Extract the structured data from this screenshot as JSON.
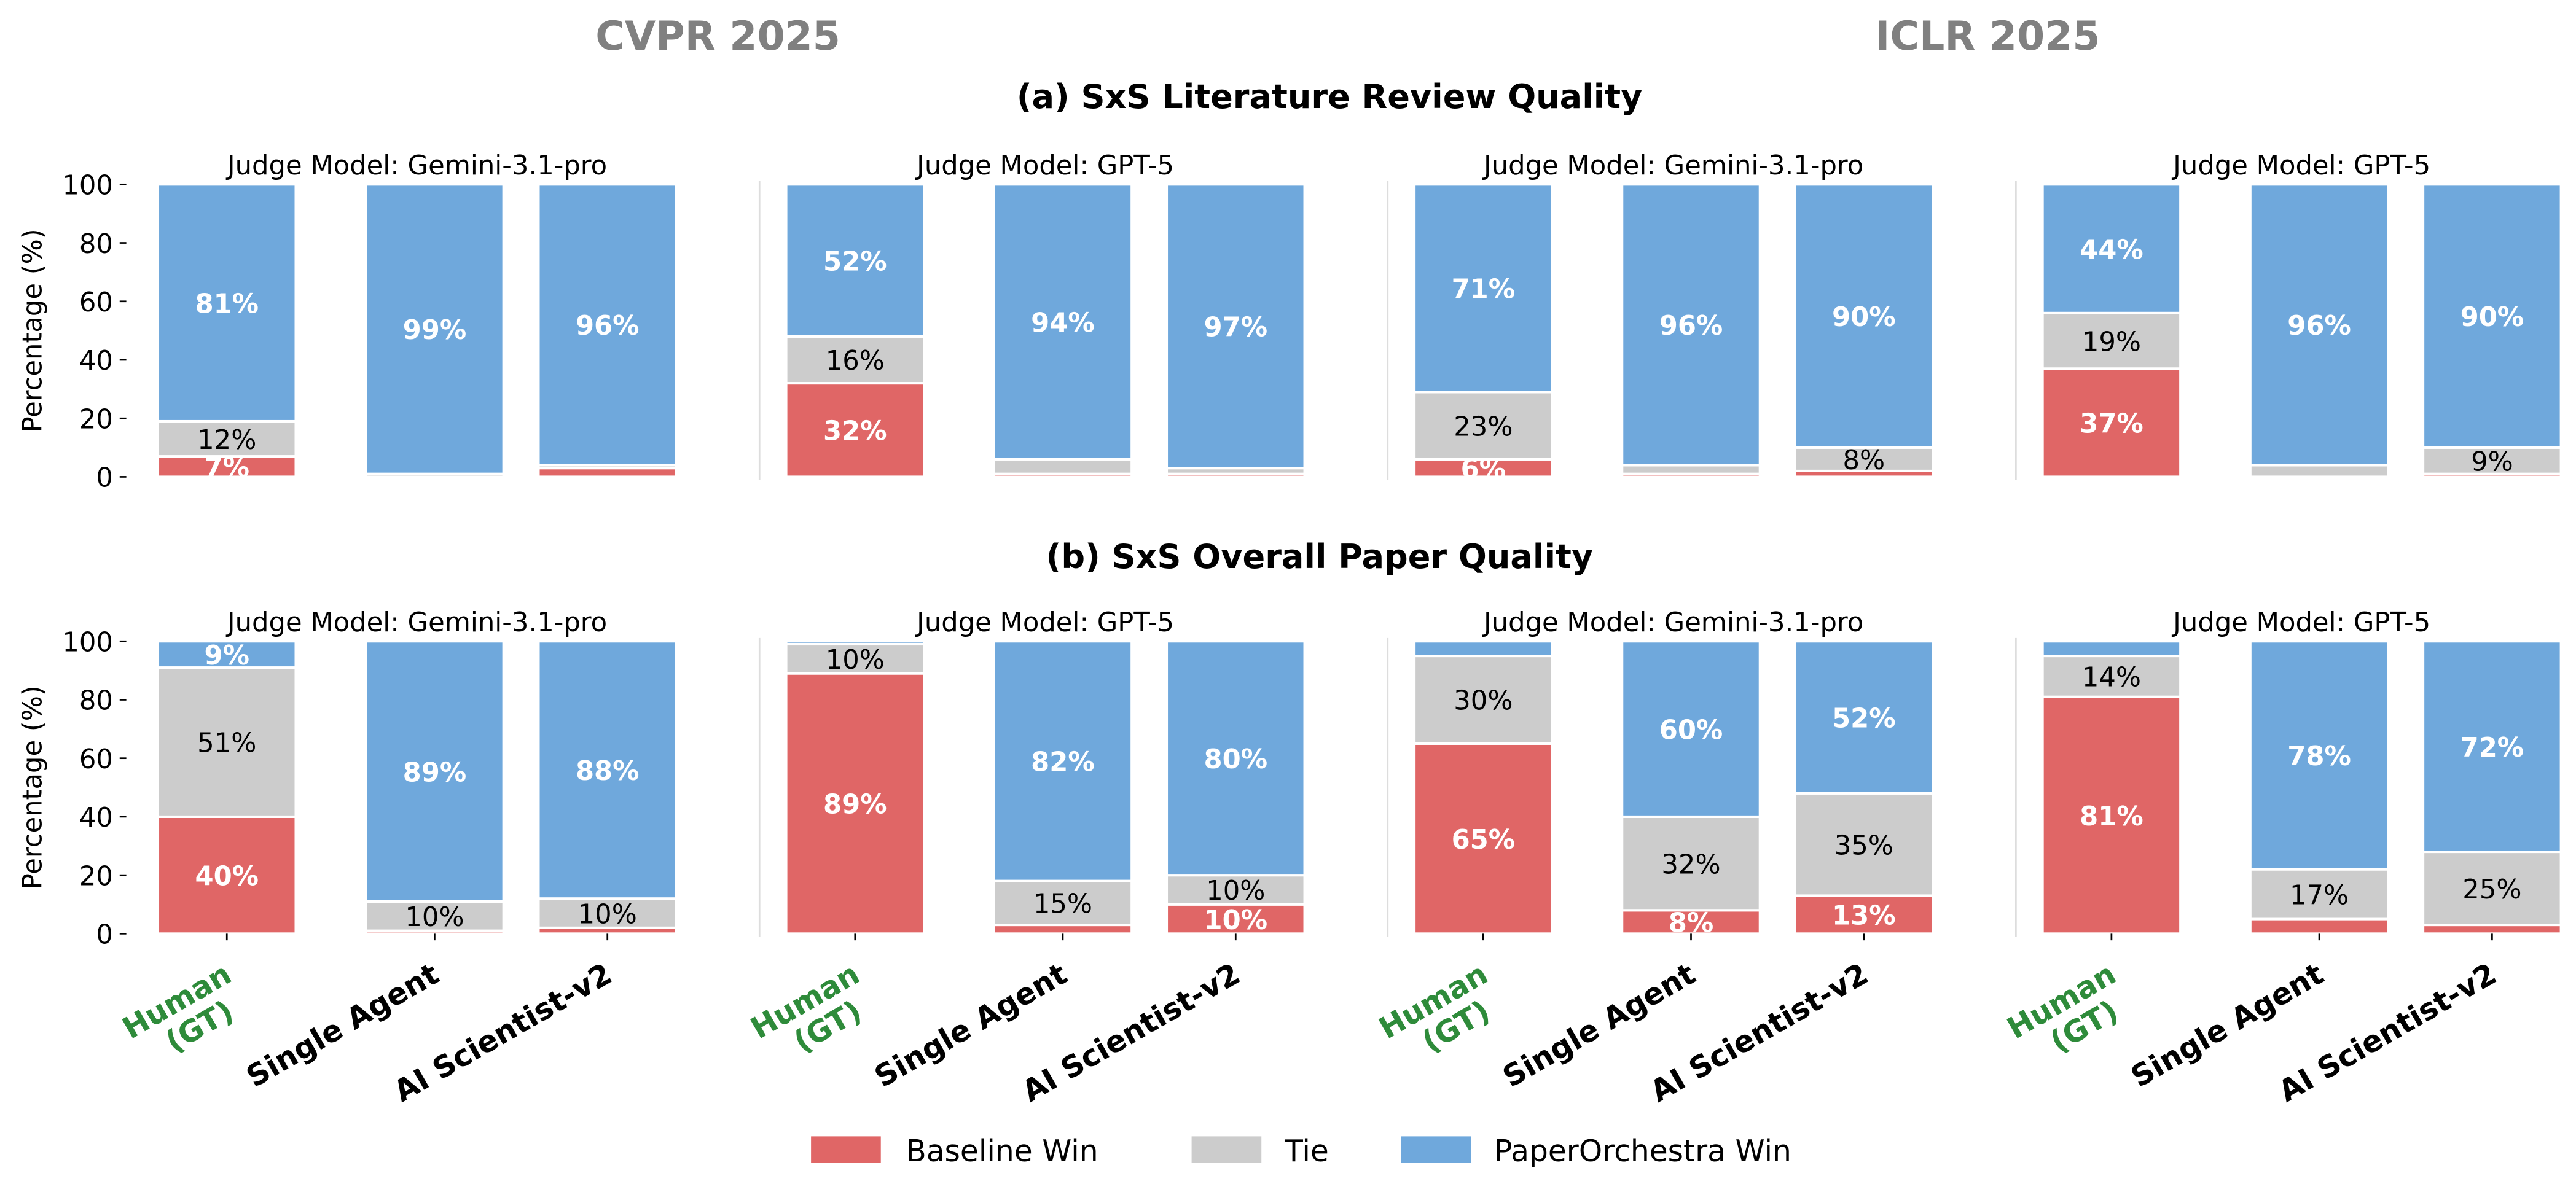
{
  "column_headers": [
    "CVPR 2025",
    "ICLR 2025"
  ],
  "colors": {
    "baseline": "#E06666",
    "tie": "#CCCCCC",
    "win": "#6FA8DC",
    "header": "#808080",
    "human_label": "#2E8B3A"
  },
  "legend": [
    "Baseline Win",
    "Tie",
    "PaperOrchestra Win"
  ],
  "chart_data": {
    "type": "bar",
    "stacked": true,
    "ylabel": "Percentage (%)",
    "ylim": [
      0,
      100
    ],
    "yticks": [
      "0",
      "20",
      "40",
      "60",
      "80",
      "100"
    ],
    "categories": [
      "Human\n(GT)",
      "Single Agent",
      "AI Scientist-v2"
    ],
    "legend_position": "bottom-center",
    "rows": [
      {
        "title": "(a) SxS Literature Review Quality",
        "panels": [
          {
            "conference": "CVPR 2025",
            "subtitle": "Judge Model: Gemini-3.1-pro",
            "series": [
              {
                "name": "Baseline Win",
                "values": [
                  7,
                  0,
                  3
                ]
              },
              {
                "name": "Tie",
                "values": [
                  12,
                  1,
                  1
                ]
              },
              {
                "name": "PaperOrchestra Win",
                "values": [
                  81,
                  99,
                  96
                ]
              }
            ]
          },
          {
            "conference": "CVPR 2025",
            "subtitle": "Judge Model: GPT-5",
            "series": [
              {
                "name": "Baseline Win",
                "values": [
                  32,
                  1,
                  1
                ]
              },
              {
                "name": "Tie",
                "values": [
                  16,
                  5,
                  2
                ]
              },
              {
                "name": "PaperOrchestra Win",
                "values": [
                  52,
                  94,
                  97
                ]
              }
            ]
          },
          {
            "conference": "ICLR 2025",
            "subtitle": "Judge Model: Gemini-3.1-pro",
            "series": [
              {
                "name": "Baseline Win",
                "values": [
                  6,
                  1,
                  2
                ]
              },
              {
                "name": "Tie",
                "values": [
                  23,
                  3,
                  8
                ]
              },
              {
                "name": "PaperOrchestra Win",
                "values": [
                  71,
                  96,
                  90
                ]
              }
            ]
          },
          {
            "conference": "ICLR 2025",
            "subtitle": "Judge Model: GPT-5",
            "series": [
              {
                "name": "Baseline Win",
                "values": [
                  37,
                  0,
                  1
                ]
              },
              {
                "name": "Tie",
                "values": [
                  19,
                  4,
                  9
                ]
              },
              {
                "name": "PaperOrchestra Win",
                "values": [
                  44,
                  96,
                  90
                ]
              }
            ]
          }
        ]
      },
      {
        "title": "(b) SxS Overall Paper Quality",
        "panels": [
          {
            "conference": "CVPR 2025",
            "subtitle": "Judge Model: Gemini-3.1-pro",
            "series": [
              {
                "name": "Baseline Win",
                "values": [
                  40,
                  1,
                  2
                ]
              },
              {
                "name": "Tie",
                "values": [
                  51,
                  10,
                  10
                ]
              },
              {
                "name": "PaperOrchestra Win",
                "values": [
                  9,
                  89,
                  88
                ]
              }
            ]
          },
          {
            "conference": "CVPR 2025",
            "subtitle": "Judge Model: GPT-5",
            "series": [
              {
                "name": "Baseline Win",
                "values": [
                  89,
                  3,
                  10
                ]
              },
              {
                "name": "Tie",
                "values": [
                  10,
                  15,
                  10
                ]
              },
              {
                "name": "PaperOrchestra Win",
                "values": [
                  1,
                  82,
                  80
                ]
              }
            ]
          },
          {
            "conference": "ICLR 2025",
            "subtitle": "Judge Model: Gemini-3.1-pro",
            "series": [
              {
                "name": "Baseline Win",
                "values": [
                  65,
                  8,
                  13
                ]
              },
              {
                "name": "Tie",
                "values": [
                  30,
                  32,
                  35
                ]
              },
              {
                "name": "PaperOrchestra Win",
                "values": [
                  5,
                  60,
                  52
                ]
              }
            ]
          },
          {
            "conference": "ICLR 2025",
            "subtitle": "Judge Model: GPT-5",
            "series": [
              {
                "name": "Baseline Win",
                "values": [
                  81,
                  5,
                  3
                ]
              },
              {
                "name": "Tie",
                "values": [
                  14,
                  17,
                  25
                ]
              },
              {
                "name": "PaperOrchestra Win",
                "values": [
                  5,
                  78,
                  72
                ]
              }
            ]
          }
        ]
      }
    ]
  }
}
